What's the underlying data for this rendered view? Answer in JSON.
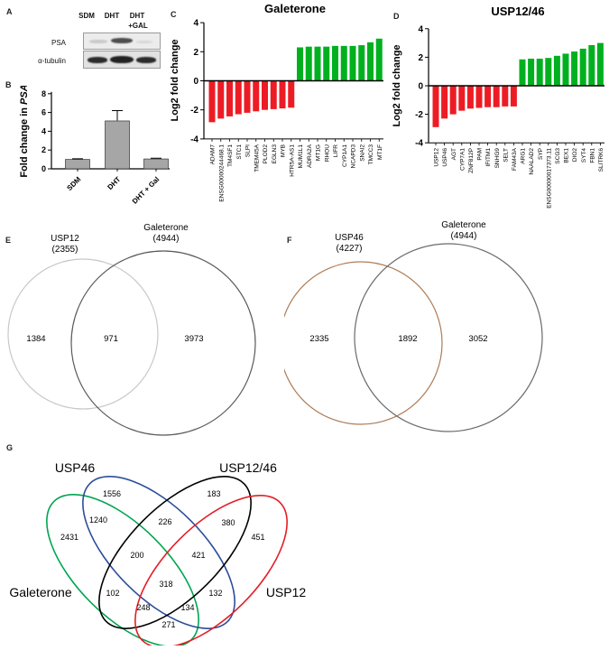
{
  "panels": {
    "a": "A",
    "b": "B",
    "c": "C",
    "d": "D",
    "e": "E",
    "f": "F",
    "g": "G"
  },
  "panel_a": {
    "lane_labels": [
      "SDM",
      "DHT",
      "DHT"
    ],
    "lane_sublabel": "+GAL",
    "row_labels": [
      "PSA",
      "α-tubulin"
    ]
  },
  "colors": {
    "negative_bar": "#ed1c24",
    "positive_bar": "#00b01f",
    "gray_bar": "#a6a6a6"
  },
  "chart_data": [
    {
      "panel": "B",
      "type": "bar",
      "categories": [
        "SDM",
        "DHT",
        "DHT + Gal"
      ],
      "values": [
        1.0,
        5.1,
        1.05
      ],
      "errors": [
        0.07,
        1.1,
        0.08
      ],
      "title": "",
      "xlabel": "",
      "ylabel": "Fold change in PSA",
      "ylabel_italic_part": "PSA",
      "ylim": [
        0,
        8
      ],
      "yticks": [
        0,
        2,
        4,
        6,
        8
      ],
      "bar_color": "#a6a6a6",
      "grid": false
    },
    {
      "panel": "C",
      "type": "bar",
      "title": "Galeterone",
      "xlabel": "",
      "ylabel": "Log2 fold change",
      "ylim": [
        -4,
        4
      ],
      "yticks": [
        -4,
        -2,
        0,
        2,
        4
      ],
      "categories": [
        "ADAM7",
        "ENSG00000244468.1",
        "TM4SF1",
        "STC1",
        "SLPI",
        "TMEM45A",
        "PLOD2",
        "EGLN3",
        "MYB",
        "HTR5A-AS1",
        "MUM1L1",
        "ADRA2A",
        "MT1G",
        "RHOU",
        "LIFR",
        "CYP1A1",
        "NCAPD3",
        "SNAI2",
        "TMCC3",
        "MT1F"
      ],
      "values": [
        -2.85,
        -2.6,
        -2.45,
        -2.3,
        -2.2,
        -2.1,
        -2.0,
        -1.95,
        -1.9,
        -1.85,
        2.3,
        2.35,
        2.35,
        2.35,
        2.4,
        2.4,
        2.4,
        2.45,
        2.65,
        2.9
      ],
      "negative_color": "#ed1c24",
      "positive_color": "#00b01f",
      "grid": false
    },
    {
      "panel": "D",
      "type": "bar",
      "title": "USP12/46",
      "xlabel": "",
      "ylabel": "Log2 fold change",
      "ylim": [
        -4,
        4
      ],
      "yticks": [
        -4,
        -2,
        0,
        2,
        4
      ],
      "categories": [
        "USP12",
        "USP46",
        "AGT",
        "CYP7A1",
        "ZNF812P",
        "PAM",
        "IFITM1",
        "SNHG9",
        "SELT",
        "FAM43A",
        "ARG1",
        "NAALAD2",
        "SYP",
        "ENSG00000017373.11",
        "SCG3",
        "BEX1",
        "DIO2",
        "SYT4",
        "FBN1",
        "SLITRK6"
      ],
      "values": [
        -2.9,
        -2.3,
        -2.0,
        -1.75,
        -1.6,
        -1.55,
        -1.5,
        -1.5,
        -1.45,
        -1.45,
        1.85,
        1.9,
        1.9,
        1.95,
        2.1,
        2.25,
        2.4,
        2.6,
        2.85,
        3.0
      ],
      "negative_color": "#ed1c24",
      "positive_color": "#00b01f",
      "grid": false
    },
    {
      "panel": "E",
      "type": "venn2",
      "sets": [
        {
          "name": "USP12",
          "size": "(2355)",
          "color": "#c8c8c8"
        },
        {
          "name": "Galeterone",
          "size": "(4944)",
          "color": "#595959"
        }
      ],
      "counts": {
        "left_only": "1384",
        "intersection": "971",
        "right_only": "3973"
      }
    },
    {
      "panel": "F",
      "type": "venn2",
      "sets": [
        {
          "name": "USP46",
          "size": "(4227)",
          "color": "#ad7d59"
        },
        {
          "name": "Galeterone",
          "size": "(4944)",
          "color": "#6a6a6a"
        }
      ],
      "counts": {
        "left_only": "2335",
        "intersection": "1892",
        "right_only": "3052"
      }
    },
    {
      "panel": "G",
      "type": "venn4",
      "sets": [
        {
          "name": "Galeterone",
          "color": "#00a550"
        },
        {
          "name": "USP46",
          "color": "#2c4d9b"
        },
        {
          "name": "USP12/46",
          "color": "#000000"
        },
        {
          "name": "USP12",
          "color": "#e31e24"
        }
      ],
      "regions": {
        "usp46_only": "1556",
        "usp12_46_only": "183",
        "galeterone_usp46": "1240",
        "usp46_usp12_46": "226",
        "usp12_46_usp12": "380",
        "galeterone_only": "2431",
        "galeterone_usp46_usp12_46": "200",
        "usp46_usp12_46_usp12": "421",
        "usp12_only": "451",
        "galeterone_usp12_46": "102",
        "all_four": "318",
        "usp46_usp12": "132",
        "galeterone_usp12_46_usp12": "248",
        "galeterone_usp46_usp12": "134",
        "galeterone_usp12": "271"
      }
    }
  ]
}
